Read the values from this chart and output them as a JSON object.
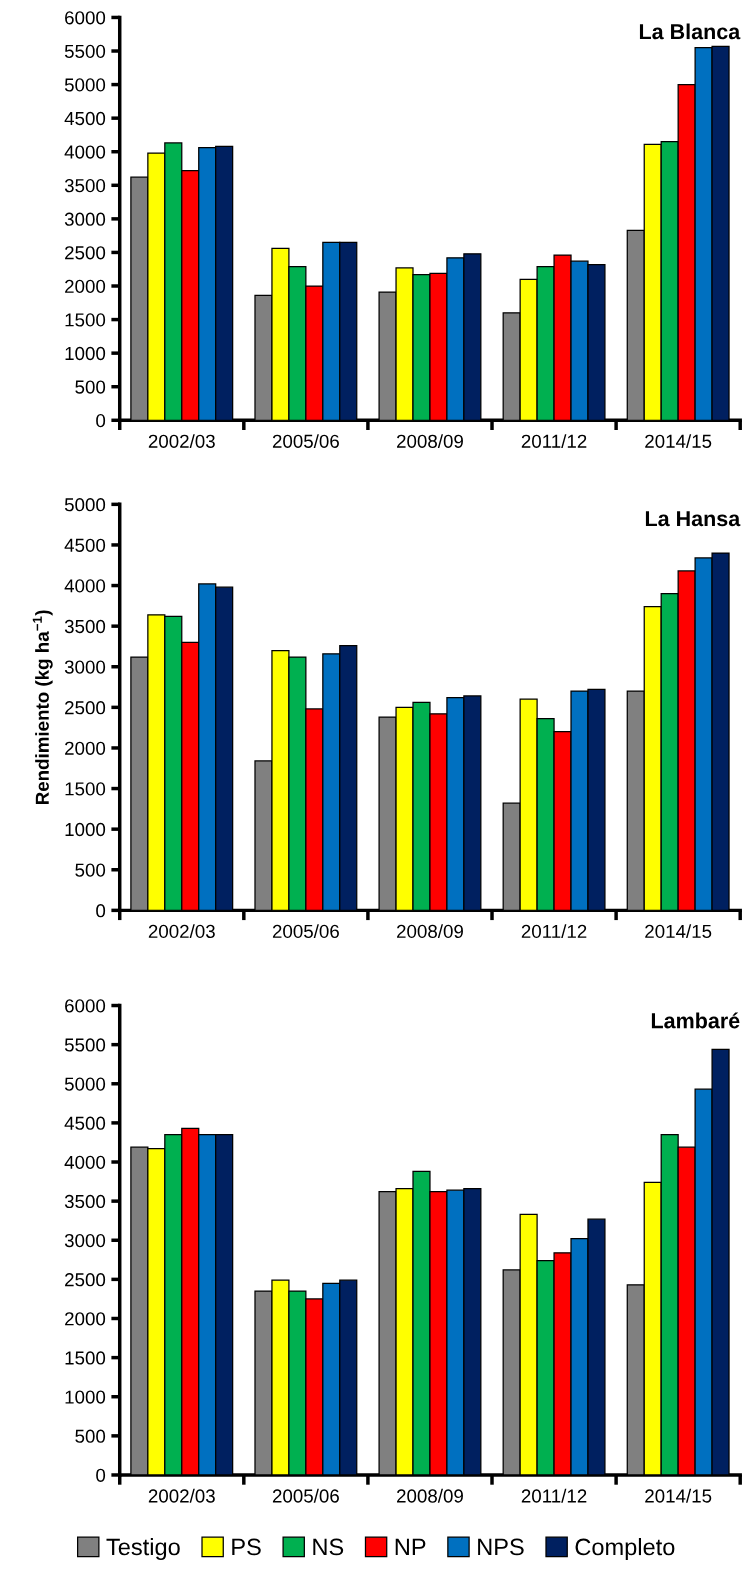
{
  "chart_data": [
    {
      "type": "bar",
      "title": "La Blanca",
      "categories": [
        "2002/03",
        "2005/06",
        "2008/09",
        "2011/12",
        "2014/15"
      ],
      "ylim": [
        0,
        6000
      ],
      "yticks": [
        0,
        500,
        1000,
        1500,
        2000,
        2500,
        3000,
        3500,
        4000,
        4500,
        5000,
        5500,
        6000
      ],
      "grid": false,
      "series": [
        {
          "color": "#808080",
          "values": [
            3620,
            1860,
            1910,
            1600,
            2830
          ]
        },
        {
          "color": "#ffff00",
          "values": [
            3980,
            2560,
            2270,
            2100,
            4110
          ]
        },
        {
          "color": "#00b050",
          "values": [
            4130,
            2290,
            2170,
            2290,
            4150
          ]
        },
        {
          "color": "#ff0000",
          "values": [
            3720,
            2000,
            2190,
            2460,
            5000
          ]
        },
        {
          "color": "#0070c0",
          "values": [
            4060,
            2650,
            2420,
            2370,
            5550
          ]
        },
        {
          "color": "#002060",
          "values": [
            4080,
            2650,
            2480,
            2320,
            5570
          ]
        }
      ]
    },
    {
      "type": "bar",
      "title": "La Hansa",
      "ylabel": "Rendimiento (kg ha$^{−1}$)",
      "categories": [
        "2002/03",
        "2005/06",
        "2008/09",
        "2011/12",
        "2014/15"
      ],
      "ylim": [
        0,
        5000
      ],
      "yticks": [
        0,
        500,
        1000,
        1500,
        2000,
        2500,
        3000,
        3500,
        4000,
        4500,
        5000
      ],
      "grid": false,
      "series": [
        {
          "color": "#808080",
          "values": [
            3120,
            1840,
            2380,
            1320,
            2700
          ]
        },
        {
          "color": "#ffff00",
          "values": [
            3640,
            3200,
            2500,
            2600,
            3740
          ]
        },
        {
          "color": "#00b050",
          "values": [
            3620,
            3120,
            2560,
            2360,
            3900
          ]
        },
        {
          "color": "#ff0000",
          "values": [
            3300,
            2480,
            2420,
            2200,
            4180
          ]
        },
        {
          "color": "#0070c0",
          "values": [
            4020,
            3160,
            2620,
            2700,
            4340
          ]
        },
        {
          "color": "#002060",
          "values": [
            3980,
            3260,
            2640,
            2720,
            4400
          ]
        }
      ]
    },
    {
      "type": "bar",
      "title": "Lambaré",
      "categories": [
        "2002/03",
        "2005/06",
        "2008/09",
        "2011/12",
        "2014/15"
      ],
      "ylim": [
        0,
        6000
      ],
      "yticks": [
        0,
        500,
        1000,
        1500,
        2000,
        2500,
        3000,
        3500,
        4000,
        4500,
        5000,
        5500,
        6000
      ],
      "grid": false,
      "legend": "bottom",
      "series": [
        {
          "name": "Testigo",
          "color": "#808080",
          "values": [
            4190,
            2350,
            3620,
            2620,
            2430
          ]
        },
        {
          "name": "PS",
          "color": "#ffff00",
          "values": [
            4170,
            2490,
            3660,
            3330,
            3740
          ]
        },
        {
          "name": "NS",
          "color": "#00b050",
          "values": [
            4350,
            2350,
            3880,
            2740,
            4350
          ]
        },
        {
          "name": "NP",
          "color": "#ff0000",
          "values": [
            4430,
            2250,
            3620,
            2840,
            4190
          ]
        },
        {
          "name": "NPS",
          "color": "#0070c0",
          "values": [
            4350,
            2450,
            3640,
            3020,
            4930
          ]
        },
        {
          "name": "Completo",
          "color": "#002060",
          "values": [
            4350,
            2490,
            3660,
            3270,
            5440
          ]
        }
      ]
    }
  ]
}
